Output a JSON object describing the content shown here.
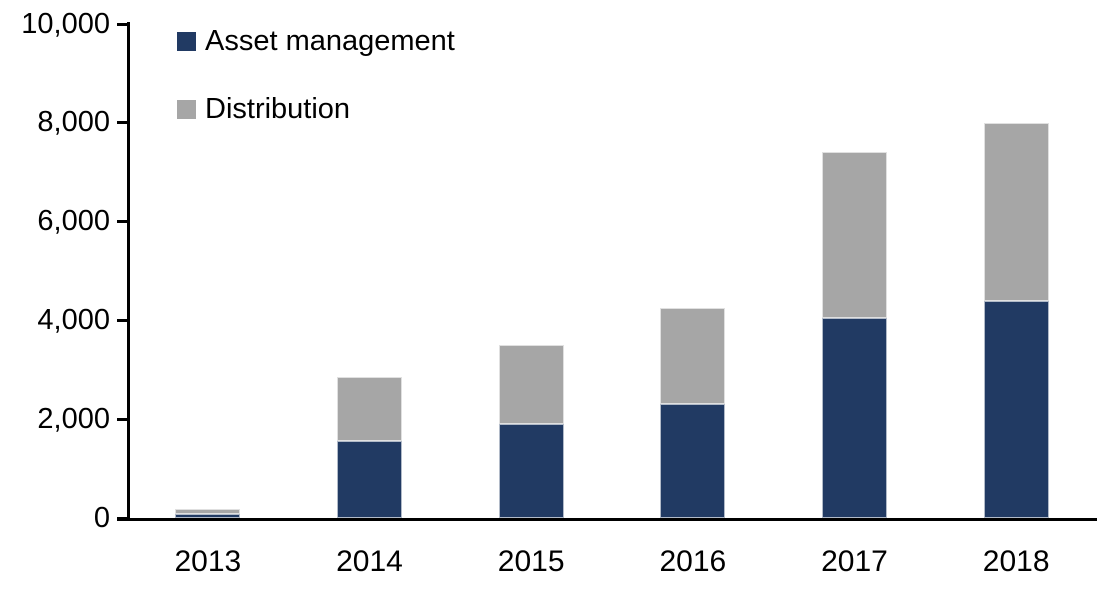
{
  "chart_data": {
    "type": "bar",
    "stacked": true,
    "title": "",
    "xlabel": "",
    "ylabel": "",
    "categories": [
      "2013",
      "2014",
      "2015",
      "2016",
      "2017",
      "2018"
    ],
    "series": [
      {
        "name": "Asset management",
        "color": "#213A63",
        "values": [
          80,
          1550,
          1900,
          2300,
          4050,
          4400
        ]
      },
      {
        "name": "Distribution",
        "color": "#A6A6A6",
        "values": [
          100,
          1300,
          1600,
          1950,
          3350,
          3600
        ]
      }
    ],
    "stacked_totals": [
      180,
      2850,
      3500,
      4250,
      7400,
      8000
    ],
    "ylim": [
      0,
      10000
    ],
    "ytick_interval": 2000,
    "ytick_labels": [
      "0",
      "2,000",
      "4,000",
      "6,000",
      "8,000",
      "10,000"
    ],
    "grid": false,
    "legend_position": "top-left-inside",
    "axis_color": "#000000",
    "background_color": "#FFFFFF"
  }
}
